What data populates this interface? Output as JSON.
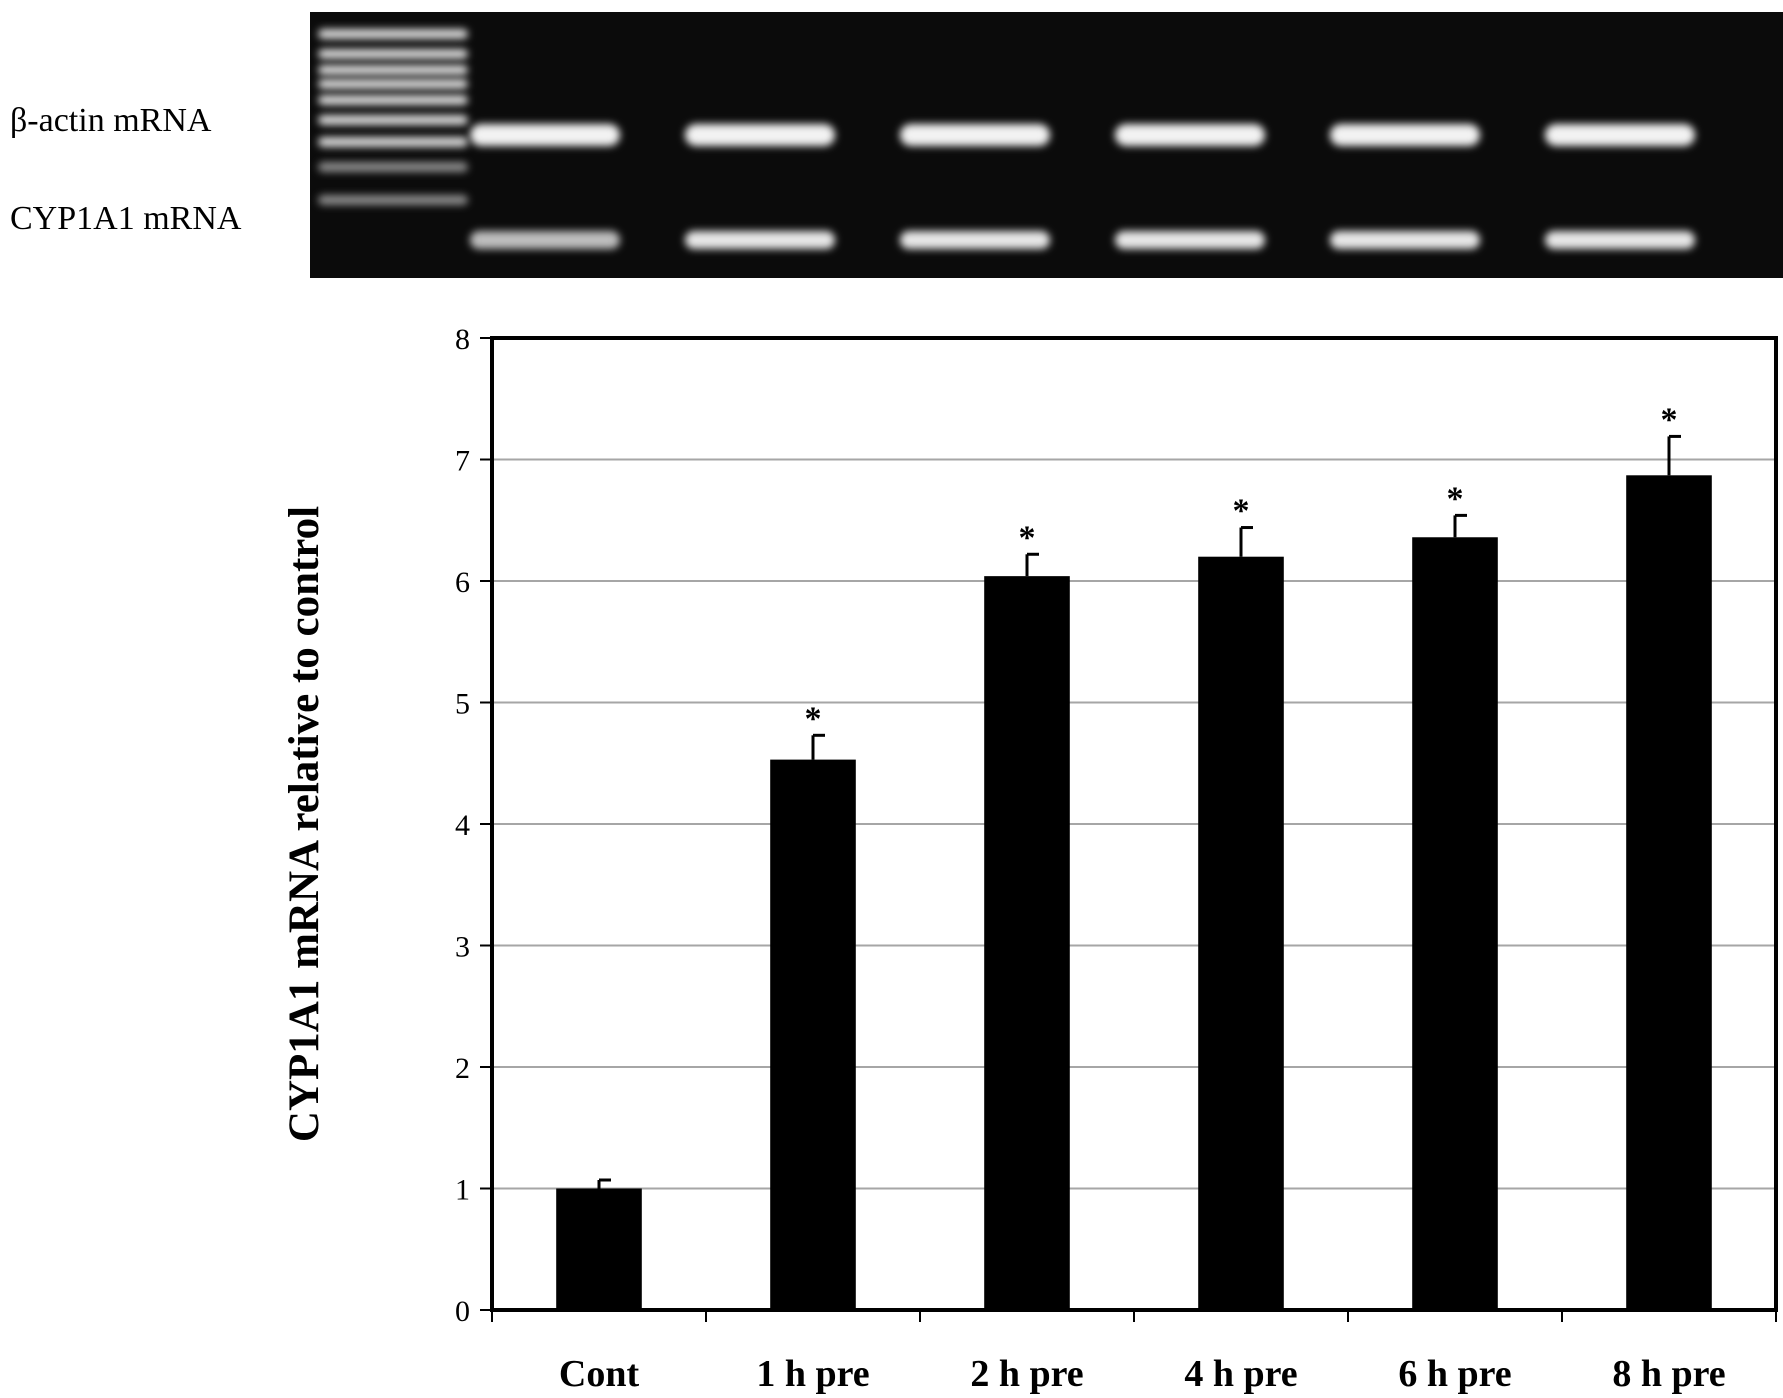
{
  "gel": {
    "band_labels": [
      "β-actin mRNA",
      "CYP1A1 mRNA"
    ],
    "lanes": 6,
    "ladder_bands": 9
  },
  "chart_data": {
    "type": "bar",
    "categories": [
      "Cont",
      "1 h pre",
      "2 h pre",
      "4 h pre",
      "6 h pre",
      "8 h pre"
    ],
    "values": [
      1.0,
      4.53,
      6.04,
      6.2,
      6.36,
      6.87
    ],
    "errors": [
      0.07,
      0.2,
      0.18,
      0.24,
      0.18,
      0.32
    ],
    "significance": [
      "",
      "*",
      "*",
      "*",
      "*",
      "*"
    ],
    "ylabel": "CYP1A1 mRNA relative to control",
    "xlabel": "",
    "ylim": [
      0,
      8
    ],
    "yticks": [
      0,
      1,
      2,
      3,
      4,
      5,
      6,
      7,
      8
    ],
    "grid": true,
    "bar_color": "#000000",
    "grid_color": "#a6a6a6"
  }
}
